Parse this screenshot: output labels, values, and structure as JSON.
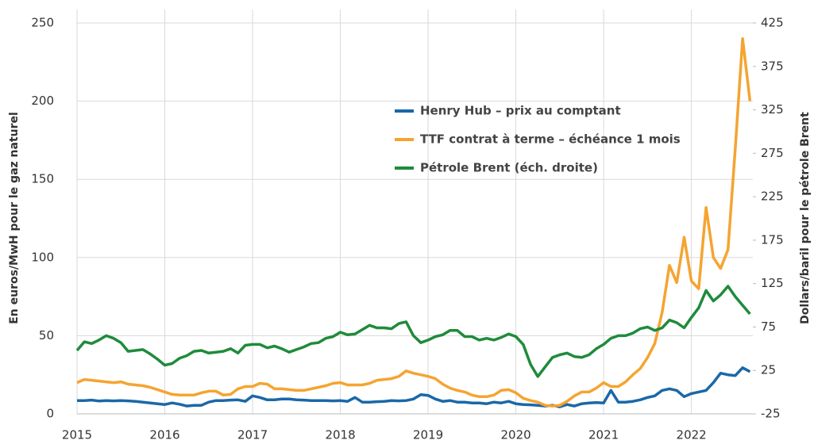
{
  "chart_data": {
    "type": "line",
    "y_label": "En euros/MwH pour le gaz naturel",
    "y2_label": "Dollars/baril pour le pétrole Brent",
    "x": [
      2015,
      2015.083,
      2015.167,
      2015.25,
      2015.333,
      2015.417,
      2015.5,
      2015.583,
      2015.667,
      2015.75,
      2015.833,
      2015.917,
      2016,
      2016.083,
      2016.167,
      2016.25,
      2016.333,
      2016.417,
      2016.5,
      2016.583,
      2016.667,
      2016.75,
      2016.833,
      2016.917,
      2017,
      2017.083,
      2017.167,
      2017.25,
      2017.333,
      2017.417,
      2017.5,
      2017.583,
      2017.667,
      2017.75,
      2017.833,
      2017.917,
      2018,
      2018.083,
      2018.167,
      2018.25,
      2018.333,
      2018.417,
      2018.5,
      2018.583,
      2018.667,
      2018.75,
      2018.833,
      2018.917,
      2019,
      2019.083,
      2019.167,
      2019.25,
      2019.333,
      2019.417,
      2019.5,
      2019.583,
      2019.667,
      2019.75,
      2019.833,
      2019.917,
      2020,
      2020.083,
      2020.167,
      2020.25,
      2020.333,
      2020.417,
      2020.5,
      2020.583,
      2020.667,
      2020.75,
      2020.833,
      2020.917,
      2021,
      2021.083,
      2021.167,
      2021.25,
      2021.333,
      2021.417,
      2021.5,
      2021.583,
      2021.667,
      2021.75,
      2021.833,
      2021.917,
      2022,
      2022.083,
      2022.167,
      2022.25,
      2022.333,
      2022.417,
      2022.5,
      2022.583,
      2022.667
    ],
    "series": [
      {
        "name": "Henry Hub – prix au comptant",
        "color": "#1a68a8",
        "values": [
          8.5,
          8.5,
          8.8,
          8.2,
          8.5,
          8.3,
          8.5,
          8.3,
          8,
          7.5,
          7,
          6.5,
          6,
          7,
          6.2,
          5,
          5.5,
          5.5,
          7.5,
          8.5,
          8.5,
          8.8,
          9,
          8,
          11.5,
          10.5,
          9,
          9,
          9.5,
          9.5,
          9,
          8.8,
          8.5,
          8.5,
          8.5,
          8.3,
          8.5,
          8,
          10.5,
          7.5,
          7.5,
          7.8,
          8,
          8.5,
          8.3,
          8.5,
          9.5,
          12.3,
          11.8,
          9.5,
          8,
          8.5,
          7.5,
          7.5,
          7,
          7,
          6.5,
          7.5,
          7,
          8,
          6.5,
          6,
          5.8,
          5.5,
          5,
          5.5,
          4.5,
          6,
          5,
          6.5,
          7,
          7.2,
          7,
          15,
          7.5,
          7.5,
          8,
          9,
          10.5,
          11.5,
          15,
          16,
          15,
          11,
          13,
          14,
          15,
          20,
          26,
          25,
          24.5,
          29.5,
          27
        ]
      },
      {
        "name": "TTF contrat à terme – échéance 1 mois",
        "color": "#f5a430",
        "values": [
          20,
          22,
          21.5,
          21,
          20.5,
          20,
          20.5,
          19,
          18.5,
          18,
          17,
          15.5,
          14,
          12.5,
          12,
          12,
          12,
          13.5,
          14.5,
          14.5,
          12,
          12.5,
          16,
          17.5,
          17.5,
          19.5,
          19,
          16,
          16,
          15.5,
          15,
          15,
          16,
          17,
          18,
          19.5,
          20,
          18.5,
          18.5,
          18.5,
          19.5,
          21.5,
          22,
          22.5,
          24,
          27.5,
          26,
          25,
          24,
          22.5,
          19,
          16.5,
          15,
          14,
          12,
          11,
          11,
          12,
          15,
          15.5,
          13.5,
          10,
          8.5,
          7.5,
          5.5,
          5,
          5.5,
          8,
          11.5,
          14,
          14,
          16.5,
          20,
          17.5,
          17.5,
          20.5,
          25,
          29,
          36,
          45,
          65,
          95,
          84,
          113,
          85,
          80,
          132,
          100,
          93,
          105,
          170,
          240,
          200
        ]
      },
      {
        "name": "Pétrole Brent (éch. droite)",
        "color": "#1f8b3b",
        "axis": "y2",
        "values": [
          48,
          58,
          56,
          60,
          65,
          62,
          57,
          47,
          48,
          49,
          44,
          38,
          31,
          33,
          39,
          42,
          47,
          48,
          45,
          46,
          47,
          50,
          45,
          54,
          55,
          55,
          51,
          53,
          50,
          46,
          49,
          52,
          56,
          57,
          62,
          64,
          69,
          66,
          67,
          72,
          77,
          74,
          74,
          73,
          79,
          81,
          65,
          57,
          60,
          64,
          66,
          71,
          71,
          64,
          64,
          60,
          62,
          60,
          63,
          67,
          64,
          55,
          32,
          18,
          29,
          40,
          43,
          45,
          41,
          40,
          43,
          50,
          55,
          62,
          65,
          65,
          68,
          73,
          75,
          71,
          74,
          83,
          80,
          74,
          86,
          97,
          117,
          105,
          112,
          122,
          110,
          100,
          90
        ]
      }
    ],
    "xlim": [
      2015,
      2022.7
    ],
    "xticks": [
      2015,
      2016,
      2017,
      2018,
      2019,
      2020,
      2021,
      2022
    ],
    "ylim": [
      0,
      250
    ],
    "yticks": [
      0,
      50,
      100,
      150,
      200,
      250
    ],
    "y2lim": [
      -25,
      425
    ],
    "y2ticks": [
      -25,
      25,
      75,
      125,
      175,
      225,
      275,
      325,
      375,
      425
    ],
    "grid": true,
    "legend": "top-center"
  }
}
